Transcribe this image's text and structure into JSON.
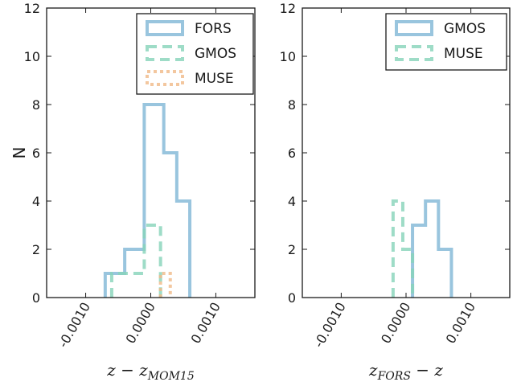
{
  "chart_data": [
    {
      "type": "histogram",
      "xlabel_parts": {
        "a": "z − z",
        "sub": "MOM15",
        "b": ""
      },
      "ylabel": "N",
      "ylim": [
        0,
        12
      ],
      "xlim": [
        -0.0016,
        0.0016
      ],
      "yticks": [
        0,
        2,
        4,
        6,
        8,
        10,
        12
      ],
      "ytick_labels": [
        "0",
        "2",
        "4",
        "6",
        "8",
        "10",
        "12"
      ],
      "xticks": [
        -0.001,
        0.0,
        0.001
      ],
      "xtick_labels": [
        "-0.0010",
        "0.0000",
        "0.0010"
      ],
      "grid": false,
      "legend": "top-right",
      "series": [
        {
          "name": "FORS",
          "color": "#7fb6d6",
          "style": "solid",
          "edges": [
            -0.0007,
            -0.0004,
            -0.0001,
            0.0002,
            0.0004,
            0.0006
          ],
          "counts": [
            1,
            2,
            8,
            6,
            4
          ]
        },
        {
          "name": "GMOS",
          "color": "#86d3b9",
          "style": "dashed",
          "edges": [
            -0.0006,
            -0.00035,
            -0.0001,
            0.00015
          ],
          "counts": [
            1,
            1,
            3
          ]
        },
        {
          "name": "MUSE",
          "color": "#f0b987",
          "style": "dotted",
          "edges": [
            0.00015,
            0.0003
          ],
          "counts": [
            1
          ]
        }
      ]
    },
    {
      "type": "histogram",
      "xlabel_parts": {
        "a": "z",
        "sub": "FORS",
        "b": " − z"
      },
      "ylim": [
        0,
        12
      ],
      "xlim": [
        -0.0016,
        0.0016
      ],
      "yticks": [
        0,
        2,
        4,
        6,
        8,
        10,
        12
      ],
      "ytick_labels": [
        "0",
        "2",
        "4",
        "6",
        "8",
        "10",
        "12"
      ],
      "xticks": [
        -0.001,
        0.0,
        0.001
      ],
      "xtick_labels": [
        "-0.0010",
        "0.0000",
        "0.0010"
      ],
      "grid": false,
      "legend": "top-right",
      "series": [
        {
          "name": "GMOS",
          "color": "#7fb6d6",
          "style": "solid",
          "edges": [
            0.0001,
            0.0003,
            0.0005,
            0.0007
          ],
          "counts": [
            3,
            4,
            2
          ]
        },
        {
          "name": "MUSE",
          "color": "#86d3b9",
          "style": "dashed",
          "edges": [
            -0.0002,
            -5e-05,
            0.0001
          ],
          "counts": [
            4,
            2
          ]
        }
      ]
    }
  ]
}
